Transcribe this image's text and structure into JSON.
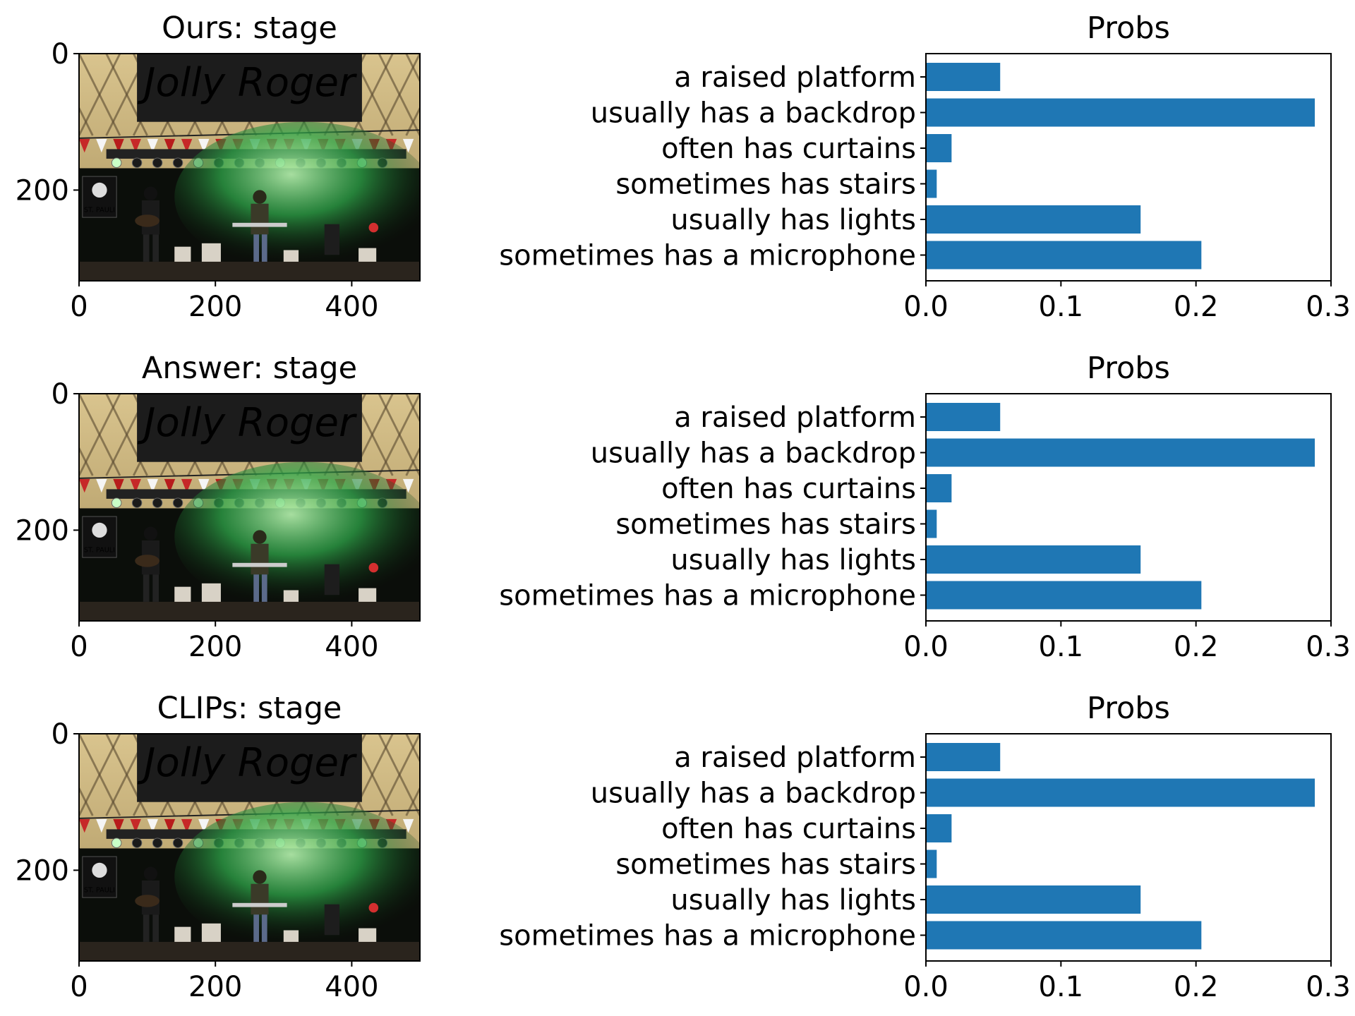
{
  "colors": {
    "bar": "#1f77b4",
    "tent": "#c8b27a",
    "banner": "#1c1c1c",
    "banner_text": "#efe6cf",
    "stage_dark": "#0b0e0a",
    "smoke": "#3fbf5a",
    "light": "#c9ffc6",
    "floor": "#2a241d"
  },
  "chart_data": [
    {
      "type": "image",
      "title": "Ours: stage",
      "image_content": "concert-stage-photo",
      "image_text": [
        "Jolly Roger",
        "ST. PAULI"
      ],
      "x_ticks": [
        "0",
        "200",
        "400"
      ],
      "y_ticks": [
        "0",
        "200"
      ],
      "x_tick_values": [
        0,
        200,
        400
      ],
      "y_tick_values": [
        0,
        200
      ],
      "image_width": 500,
      "image_height": 333
    },
    {
      "type": "bar",
      "orientation": "horizontal",
      "title": "Probs",
      "categories": [
        "a raised platform",
        "usually has a backdrop",
        "often has curtains",
        "sometimes has stairs",
        "usually has lights",
        "sometimes has a microphone"
      ],
      "values": [
        0.055,
        0.288,
        0.019,
        0.008,
        0.159,
        0.204
      ],
      "xlim": [
        0,
        0.3
      ],
      "x_ticks": [
        "0.0",
        "0.1",
        "0.2",
        "0.3"
      ],
      "x_tick_values": [
        0,
        0.1,
        0.2,
        0.3
      ],
      "grid": false
    },
    {
      "type": "image",
      "title": "Answer: stage",
      "image_content": "concert-stage-photo",
      "image_text": [
        "Jolly Roger",
        "ST. PAULI"
      ],
      "x_ticks": [
        "0",
        "200",
        "400"
      ],
      "y_ticks": [
        "0",
        "200"
      ],
      "x_tick_values": [
        0,
        200,
        400
      ],
      "y_tick_values": [
        0,
        200
      ],
      "image_width": 500,
      "image_height": 333
    },
    {
      "type": "bar",
      "orientation": "horizontal",
      "title": "Probs",
      "categories": [
        "a raised platform",
        "usually has a backdrop",
        "often has curtains",
        "sometimes has stairs",
        "usually has lights",
        "sometimes has a microphone"
      ],
      "values": [
        0.055,
        0.288,
        0.019,
        0.008,
        0.159,
        0.204
      ],
      "xlim": [
        0,
        0.3
      ],
      "x_ticks": [
        "0.0",
        "0.1",
        "0.2",
        "0.3"
      ],
      "x_tick_values": [
        0,
        0.1,
        0.2,
        0.3
      ],
      "grid": false
    },
    {
      "type": "image",
      "title": "CLIPs: stage",
      "image_content": "concert-stage-photo",
      "image_text": [
        "Jolly Roger",
        "ST. PAULI"
      ],
      "x_ticks": [
        "0",
        "200",
        "400"
      ],
      "y_ticks": [
        "0",
        "200"
      ],
      "x_tick_values": [
        0,
        200,
        400
      ],
      "y_tick_values": [
        0,
        200
      ],
      "image_width": 500,
      "image_height": 333
    },
    {
      "type": "bar",
      "orientation": "horizontal",
      "title": "Probs",
      "categories": [
        "a raised platform",
        "usually has a backdrop",
        "often has curtains",
        "sometimes has stairs",
        "usually has lights",
        "sometimes has a microphone"
      ],
      "values": [
        0.055,
        0.288,
        0.019,
        0.008,
        0.159,
        0.204
      ],
      "xlim": [
        0,
        0.3
      ],
      "x_ticks": [
        "0.0",
        "0.1",
        "0.2",
        "0.3"
      ],
      "x_tick_values": [
        0,
        0.1,
        0.2,
        0.3
      ],
      "grid": false
    }
  ]
}
